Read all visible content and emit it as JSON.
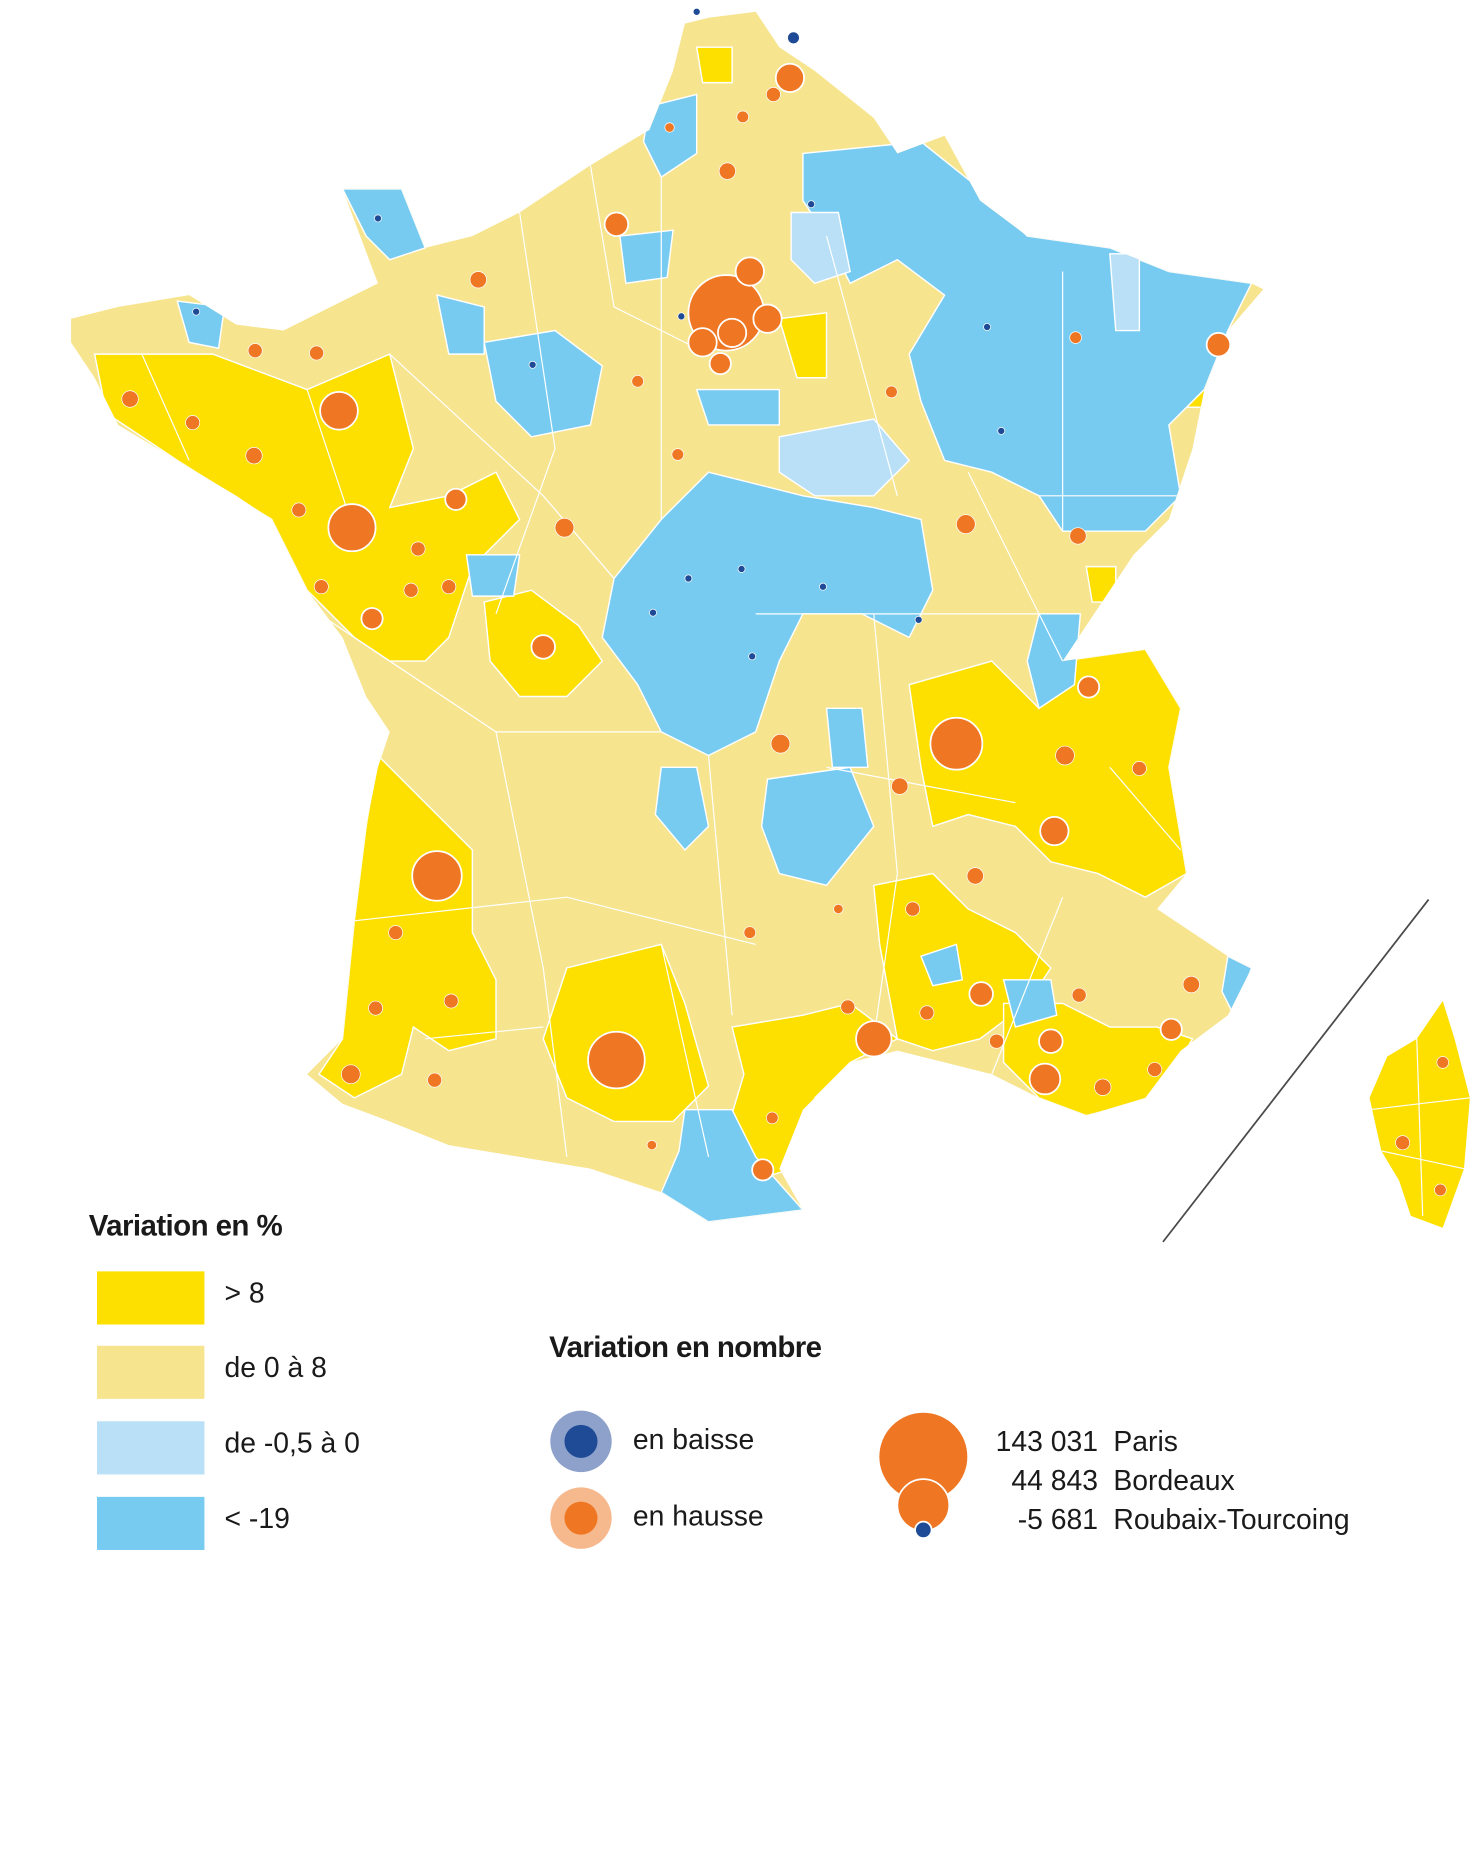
{
  "legend_percent": {
    "title": "Variation en %",
    "classes": [
      {
        "label": "> 8",
        "color": "#fddf00"
      },
      {
        "label": "de 0 à 8",
        "color": "#f7e48f"
      },
      {
        "label": "de -0,5 à 0",
        "color": "#b9e0f7"
      },
      {
        "label": "< -19",
        "color": "#78cbf0"
      }
    ]
  },
  "legend_number": {
    "title": "Variation en nombre",
    "signs": [
      {
        "label": "en baisse",
        "color": "#1e4a96",
        "halo": "#8ea1cb"
      },
      {
        "label": "en hausse",
        "color": "#ef7622",
        "halo": "#f6b98e"
      }
    ],
    "examples": [
      {
        "value": "143 031",
        "city": "Paris"
      },
      {
        "value": "44 843",
        "city": "Bordeaux"
      },
      {
        "value": "-5 681",
        "city": "Roubaix-Tourcoing"
      }
    ]
  }
}
